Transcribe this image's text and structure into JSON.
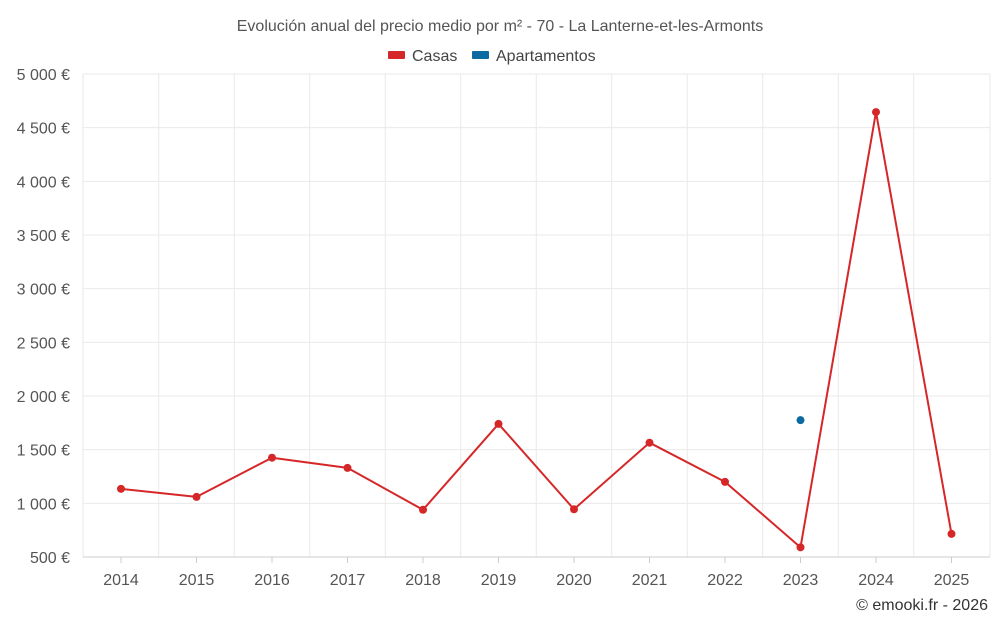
{
  "chart_data": {
    "type": "line",
    "title": "Evolución anual del precio medio por m² - 70 - La Lanterne-et-les-Armonts",
    "categories": [
      "2014",
      "2015",
      "2016",
      "2017",
      "2018",
      "2019",
      "2020",
      "2021",
      "2022",
      "2023",
      "2024",
      "2025"
    ],
    "series": [
      {
        "name": "Casas",
        "color": "#d62728",
        "values": [
          1135,
          1060,
          1425,
          1330,
          940,
          1740,
          945,
          1565,
          1200,
          590,
          4645,
          715
        ]
      },
      {
        "name": "Apartamentos",
        "color": "#0b6aa2",
        "values": [
          null,
          null,
          null,
          null,
          null,
          null,
          null,
          null,
          null,
          1775,
          null,
          null
        ]
      }
    ],
    "ylim": [
      500,
      5000
    ],
    "yticks": [
      500,
      1000,
      1500,
      2000,
      2500,
      3000,
      3500,
      4000,
      4500,
      5000
    ],
    "ytick_labels": [
      "500 €",
      "1 000 €",
      "1 500 €",
      "2 000 €",
      "2 500 €",
      "3 000 €",
      "3 500 €",
      "4 000 €",
      "4 500 €",
      "5 000 €"
    ],
    "xlabel": "",
    "ylabel": "",
    "grid": true,
    "legend": "top-center"
  },
  "credit": "© emooki.fr - 2026"
}
